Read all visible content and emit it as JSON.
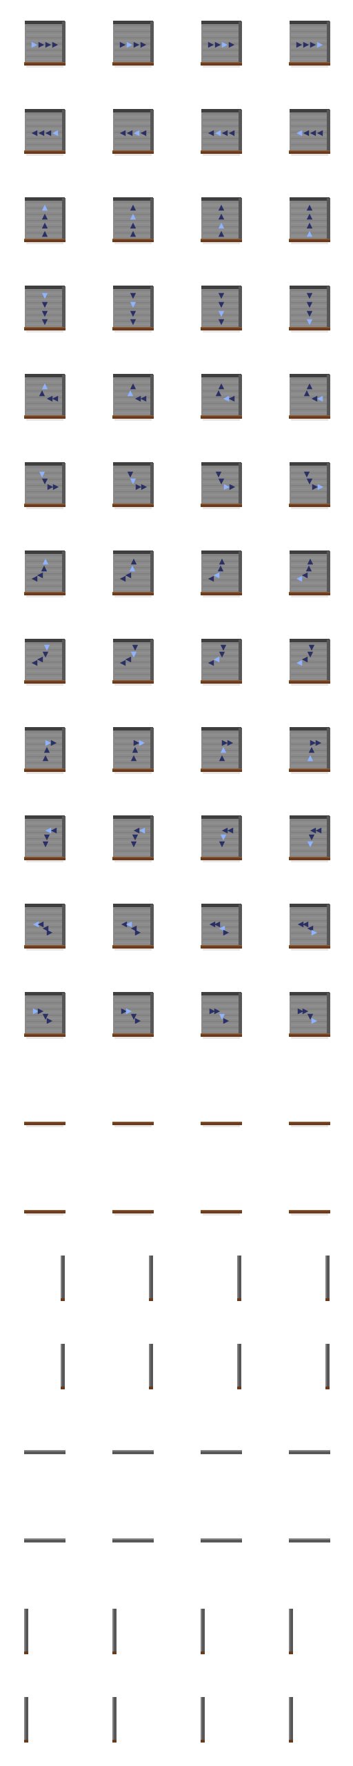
{
  "sheet": {
    "background": "#ffffff",
    "columns": 4,
    "palette": {
      "face": "#8a8a8a",
      "face_light": "#9b9b9b",
      "face_dark": "#6f6f6f",
      "edge_dark": "#3e3e3e",
      "edge_side": "#575757",
      "base_brown": "#6b3a1c",
      "base_brown_light": "#8a5a34",
      "arrow_dark": "#2a2f66",
      "arrow_light": "#8fb3ff"
    },
    "rows": [
      {
        "kind": "conveyor-block",
        "pattern": "right-4",
        "frames": [
          0,
          1,
          2,
          3
        ]
      },
      {
        "kind": "conveyor-block",
        "pattern": "left-4",
        "frames": [
          3,
          2,
          1,
          0
        ]
      },
      {
        "kind": "conveyor-block",
        "pattern": "up-3",
        "frames": [
          0,
          1,
          2,
          3
        ]
      },
      {
        "kind": "conveyor-block",
        "pattern": "down-4",
        "frames": [
          0,
          1,
          2,
          3
        ]
      },
      {
        "kind": "conveyor-block",
        "pattern": "up-left",
        "frames": [
          0,
          1,
          2,
          3
        ]
      },
      {
        "kind": "conveyor-block",
        "pattern": "down-right",
        "frames": [
          0,
          1,
          2,
          3
        ]
      },
      {
        "kind": "conveyor-block",
        "pattern": "left-up",
        "frames": [
          0,
          1,
          2,
          3
        ]
      },
      {
        "kind": "conveyor-block",
        "pattern": "left-down",
        "frames": [
          0,
          1,
          2,
          3
        ]
      },
      {
        "kind": "conveyor-block",
        "pattern": "up-right",
        "frames": [
          0,
          1,
          2,
          3
        ]
      },
      {
        "kind": "conveyor-block",
        "pattern": "left-down-2",
        "frames": [
          0,
          1,
          2,
          3
        ]
      },
      {
        "kind": "conveyor-block",
        "pattern": "left-right-turn",
        "frames": [
          0,
          1,
          2,
          3
        ]
      },
      {
        "kind": "conveyor-block",
        "pattern": "right-down-turn",
        "frames": [
          0,
          1,
          2,
          3
        ]
      },
      {
        "kind": "base-strip",
        "frames": [
          0,
          1,
          2,
          3
        ]
      },
      {
        "kind": "base-strip",
        "frames": [
          0,
          1,
          2,
          3
        ]
      },
      {
        "kind": "side-post-right",
        "frames": [
          0,
          1,
          2,
          3
        ]
      },
      {
        "kind": "side-post-right",
        "frames": [
          0,
          1,
          2,
          3
        ]
      },
      {
        "kind": "top-bar",
        "frames": [
          0,
          1,
          2,
          3
        ]
      },
      {
        "kind": "top-bar",
        "frames": [
          0,
          1,
          2,
          3
        ]
      },
      {
        "kind": "side-post-left",
        "frames": [
          0,
          1,
          2,
          3
        ]
      },
      {
        "kind": "side-post-left",
        "frames": [
          0,
          1,
          2,
          3
        ]
      }
    ]
  }
}
